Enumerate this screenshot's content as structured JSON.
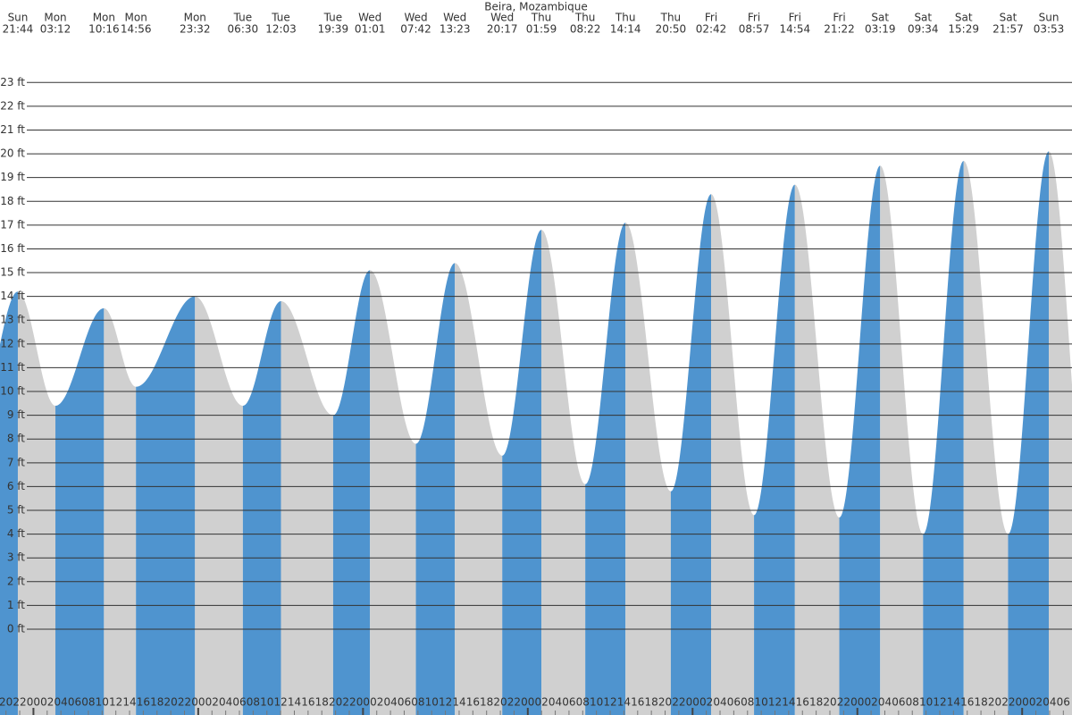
{
  "chart_data": {
    "type": "tide",
    "title": "Beira, Mozambique",
    "x": [
      21.73,
      27.2,
      34.27,
      38.93,
      47.53,
      54.5,
      60.05,
      67.65,
      73.02,
      79.7,
      85.38,
      92.28,
      97.98,
      104.37,
      110.23,
      116.83,
      122.7,
      128.95,
      134.9,
      141.37,
      147.32,
      153.57,
      159.48,
      165.95,
      171.88
    ],
    "values": [
      14.2,
      9.4,
      13.5,
      10.2,
      14.0,
      9.4,
      13.8,
      9.0,
      15.1,
      7.8,
      15.4,
      7.3,
      16.8,
      6.1,
      17.1,
      5.8,
      18.3,
      4.8,
      18.7,
      4.7,
      19.5,
      4.0,
      19.7,
      4.0,
      20.1
    ],
    "x_labels": [
      [
        "Sun",
        "21:44"
      ],
      [
        "Mon",
        "03:12"
      ],
      [
        "Mon",
        "10:16"
      ],
      [
        "Mon",
        "14:56"
      ],
      [
        "Mon",
        "23:32"
      ],
      [
        "Tue",
        "06:30"
      ],
      [
        "Tue",
        "12:03"
      ],
      [
        "Tue",
        "19:39"
      ],
      [
        "Wed",
        "01:01"
      ],
      [
        "Wed",
        "07:42"
      ],
      [
        "Wed",
        "13:23"
      ],
      [
        "Wed",
        "20:17"
      ],
      [
        "Thu",
        "01:59"
      ],
      [
        "Thu",
        "08:22"
      ],
      [
        "Thu",
        "14:14"
      ],
      [
        "Thu",
        "20:50"
      ],
      [
        "Fri",
        "02:42"
      ],
      [
        "Fri",
        "08:57"
      ],
      [
        "Fri",
        "14:54"
      ],
      [
        "Fri",
        "21:22"
      ],
      [
        "Sat",
        "03:19"
      ],
      [
        "Sat",
        "09:34"
      ],
      [
        "Sat",
        "15:29"
      ],
      [
        "Sat",
        "21:57"
      ],
      [
        "Sun",
        "03:53"
      ]
    ],
    "rising_color": "#4f94cf",
    "falling_color": "#d0d0d0",
    "xlim": [
      19.13,
      175.26
    ],
    "ylim": [
      -3.61,
      26.47
    ],
    "grid": true,
    "yticks": [
      {
        "value": 0,
        "label": "0 ft"
      },
      {
        "value": 1,
        "label": "1 ft"
      },
      {
        "value": 2,
        "label": "2 ft"
      },
      {
        "value": 3,
        "label": "3 ft"
      },
      {
        "value": 4,
        "label": "4 ft"
      },
      {
        "value": 5,
        "label": "5 ft"
      },
      {
        "value": 6,
        "label": "6 ft"
      },
      {
        "value": 7,
        "label": "7 ft"
      },
      {
        "value": 8,
        "label": "8 ft"
      },
      {
        "value": 9,
        "label": "9 ft"
      },
      {
        "value": 10,
        "label": "10 ft"
      },
      {
        "value": 11,
        "label": "11 ft"
      },
      {
        "value": 12,
        "label": "12 ft"
      },
      {
        "value": 13,
        "label": "13 ft"
      },
      {
        "value": 14,
        "label": "14 ft"
      },
      {
        "value": 15,
        "label": "15 ft"
      },
      {
        "value": 16,
        "label": "16 ft"
      },
      {
        "value": 17,
        "label": "17 ft"
      },
      {
        "value": 18,
        "label": "18 ft"
      },
      {
        "value": 19,
        "label": "19 ft"
      },
      {
        "value": 20,
        "label": "20 ft"
      },
      {
        "value": 21,
        "label": "21 ft"
      },
      {
        "value": 22,
        "label": "22 ft"
      },
      {
        "value": 23,
        "label": "23 ft"
      }
    ],
    "xticks": [
      {
        "value": 20,
        "label": "20"
      },
      {
        "value": 22,
        "label": "22"
      },
      {
        "value": 24,
        "label": "00"
      },
      {
        "value": 26,
        "label": "02"
      },
      {
        "value": 28,
        "label": "04"
      },
      {
        "value": 30,
        "label": "06"
      },
      {
        "value": 32,
        "label": "08"
      },
      {
        "value": 34,
        "label": "10"
      },
      {
        "value": 36,
        "label": "12"
      },
      {
        "value": 38,
        "label": "14"
      },
      {
        "value": 40,
        "label": "16"
      },
      {
        "value": 42,
        "label": "18"
      },
      {
        "value": 44,
        "label": "20"
      },
      {
        "value": 46,
        "label": "22"
      },
      {
        "value": 48,
        "label": "00"
      },
      {
        "value": 50,
        "label": "02"
      },
      {
        "value": 52,
        "label": "04"
      },
      {
        "value": 54,
        "label": "06"
      },
      {
        "value": 56,
        "label": "08"
      },
      {
        "value": 58,
        "label": "10"
      },
      {
        "value": 60,
        "label": "12"
      },
      {
        "value": 62,
        "label": "14"
      },
      {
        "value": 64,
        "label": "16"
      },
      {
        "value": 66,
        "label": "18"
      },
      {
        "value": 68,
        "label": "20"
      },
      {
        "value": 70,
        "label": "22"
      },
      {
        "value": 72,
        "label": "00"
      },
      {
        "value": 74,
        "label": "02"
      },
      {
        "value": 76,
        "label": "04"
      },
      {
        "value": 78,
        "label": "06"
      },
      {
        "value": 80,
        "label": "08"
      },
      {
        "value": 82,
        "label": "10"
      },
      {
        "value": 84,
        "label": "12"
      },
      {
        "value": 86,
        "label": "14"
      },
      {
        "value": 88,
        "label": "16"
      },
      {
        "value": 90,
        "label": "18"
      },
      {
        "value": 92,
        "label": "20"
      },
      {
        "value": 94,
        "label": "22"
      },
      {
        "value": 96,
        "label": "00"
      },
      {
        "value": 98,
        "label": "02"
      },
      {
        "value": 100,
        "label": "04"
      },
      {
        "value": 102,
        "label": "06"
      },
      {
        "value": 104,
        "label": "08"
      },
      {
        "value": 106,
        "label": "10"
      },
      {
        "value": 108,
        "label": "12"
      },
      {
        "value": 110,
        "label": "14"
      },
      {
        "value": 112,
        "label": "16"
      },
      {
        "value": 114,
        "label": "18"
      },
      {
        "value": 116,
        "label": "20"
      },
      {
        "value": 118,
        "label": "22"
      },
      {
        "value": 120,
        "label": "00"
      },
      {
        "value": 122,
        "label": "02"
      },
      {
        "value": 124,
        "label": "04"
      },
      {
        "value": 126,
        "label": "06"
      },
      {
        "value": 128,
        "label": "08"
      },
      {
        "value": 130,
        "label": "10"
      },
      {
        "value": 132,
        "label": "12"
      },
      {
        "value": 134,
        "label": "14"
      },
      {
        "value": 136,
        "label": "16"
      },
      {
        "value": 138,
        "label": "18"
      },
      {
        "value": 140,
        "label": "20"
      },
      {
        "value": 142,
        "label": "22"
      },
      {
        "value": 144,
        "label": "00"
      },
      {
        "value": 146,
        "label": "02"
      },
      {
        "value": 148,
        "label": "04"
      },
      {
        "value": 150,
        "label": "06"
      },
      {
        "value": 152,
        "label": "08"
      },
      {
        "value": 154,
        "label": "10"
      },
      {
        "value": 156,
        "label": "12"
      },
      {
        "value": 158,
        "label": "14"
      },
      {
        "value": 160,
        "label": "16"
      },
      {
        "value": 162,
        "label": "18"
      },
      {
        "value": 164,
        "label": "20"
      },
      {
        "value": 166,
        "label": "22"
      },
      {
        "value": 168,
        "label": "00"
      },
      {
        "value": 170,
        "label": "02"
      },
      {
        "value": 172,
        "label": "04"
      },
      {
        "value": 174,
        "label": "06"
      }
    ]
  }
}
